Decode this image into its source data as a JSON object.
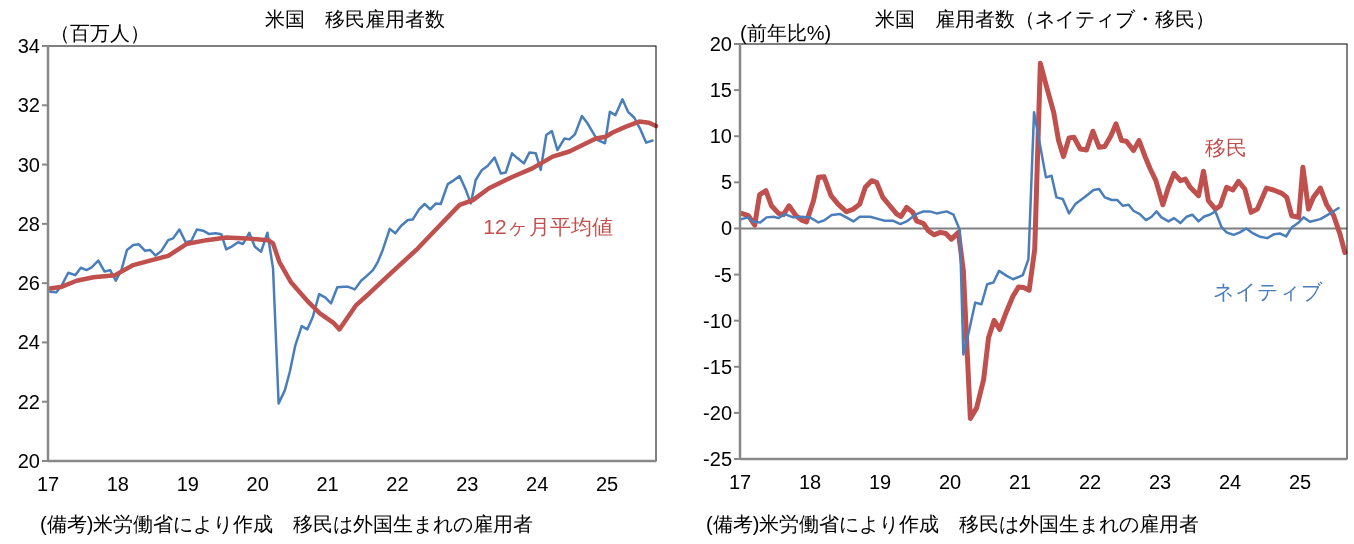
{
  "chart_data": [
    {
      "type": "line",
      "title": "米国　移民雇用者数",
      "ylabel": "（百万人）",
      "xlim": [
        2017,
        2025.7
      ],
      "xticks": [
        {
          "value": 2017,
          "label": "17"
        },
        {
          "value": 2018,
          "label": "18"
        },
        {
          "value": 2019,
          "label": "19"
        },
        {
          "value": 2020,
          "label": "20"
        },
        {
          "value": 2021,
          "label": "21"
        },
        {
          "value": 2022,
          "label": "22"
        },
        {
          "value": 2023,
          "label": "23"
        },
        {
          "value": 2024,
          "label": "24"
        },
        {
          "value": 2025,
          "label": "25"
        }
      ],
      "ylim": [
        20,
        34
      ],
      "yticks": [
        20,
        22,
        24,
        26,
        28,
        30,
        32,
        34
      ],
      "annotations": [
        "(備考)米労働省により作成　移民は外国生まれの雇用者"
      ],
      "series": [
        {
          "color": "#4a7ebb",
          "x": [
            2017.03,
            2017.12,
            2017.2,
            2017.29,
            2017.39,
            2017.47,
            2017.55,
            2017.62,
            2017.72,
            2017.81,
            2017.89,
            2017.97,
            2018.05,
            2018.13,
            2018.22,
            2018.3,
            2018.39,
            2018.46,
            2018.54,
            2018.62,
            2018.72,
            2018.79,
            2018.88,
            2018.97,
            2019.05,
            2019.13,
            2019.22,
            2019.3,
            2019.4,
            2019.48,
            2019.55,
            2019.64,
            2019.72,
            2019.79,
            2019.88,
            2019.96,
            2020.05,
            2020.14,
            2020.22,
            2020.3,
            2020.39,
            2020.46,
            2020.54,
            2020.63,
            2020.71,
            2020.79,
            2020.88,
            2020.97,
            2021.05,
            2021.14,
            2021.24,
            2021.29,
            2021.39,
            2021.48,
            2021.55,
            2021.65,
            2021.72,
            2021.79,
            2021.89,
            2021.97,
            2022.05,
            2022.15,
            2022.22,
            2022.31,
            2022.39,
            2022.47,
            2022.55,
            2022.62,
            2022.72,
            2022.8,
            2022.89,
            2022.98,
            2023.05,
            2023.12,
            2023.21,
            2023.29,
            2023.39,
            2023.48,
            2023.55,
            2023.64,
            2023.72,
            2023.81,
            2023.89,
            2023.98,
            2024.05,
            2024.13,
            2024.21,
            2024.29,
            2024.39,
            2024.46,
            2024.54,
            2024.64,
            2024.72,
            2024.79,
            2024.86,
            2024.97,
            2025.04,
            2025.12,
            2025.22,
            2025.3,
            2025.39,
            2025.48,
            2025.56,
            2025.65
          ],
          "values": [
            25.71,
            25.69,
            25.94,
            26.35,
            26.27,
            26.52,
            26.44,
            26.52,
            26.76,
            26.39,
            26.44,
            26.08,
            26.44,
            27.12,
            27.29,
            27.31,
            27.09,
            27.12,
            26.93,
            27.08,
            27.45,
            27.51,
            27.81,
            27.38,
            27.42,
            27.81,
            27.77,
            27.66,
            27.68,
            27.65,
            27.14,
            27.25,
            27.38,
            27.32,
            27.7,
            27.23,
            27.06,
            27.7,
            26.5,
            21.94,
            22.39,
            23.01,
            23.91,
            24.55,
            24.44,
            24.87,
            25.63,
            25.51,
            25.32,
            25.86,
            25.88,
            25.88,
            25.79,
            26.08,
            26.22,
            26.44,
            26.72,
            27.12,
            27.83,
            27.68,
            27.93,
            28.13,
            28.15,
            28.49,
            28.67,
            28.49,
            28.69,
            28.67,
            29.34,
            29.46,
            29.61,
            29.14,
            28.69,
            29.48,
            29.82,
            29.95,
            30.24,
            29.7,
            29.73,
            30.38,
            30.21,
            30.04,
            30.41,
            30.38,
            29.82,
            31.0,
            31.13,
            30.49,
            30.88,
            30.85,
            31.02,
            31.64,
            31.39,
            31.11,
            30.83,
            30.72,
            31.78,
            31.67,
            32.2,
            31.78,
            31.58,
            31.17,
            30.74,
            30.81
          ]
        },
        {
          "name": "12ヶ月平均値",
          "color": "#c0504d",
          "x": [
            2017.03,
            2017.2,
            2017.41,
            2017.65,
            2017.96,
            2018.22,
            2018.46,
            2018.72,
            2018.98,
            2019.27,
            2019.55,
            2019.84,
            2020.15,
            2020.22,
            2020.31,
            2020.48,
            2020.7,
            2020.89,
            2021.08,
            2021.17,
            2021.27,
            2021.41,
            2021.6,
            2021.93,
            2022.27,
            2022.55,
            2022.89,
            2023.08,
            2023.31,
            2023.65,
            2023.93,
            2024.22,
            2024.46,
            2024.84,
            2024.98,
            2025.08,
            2025.27,
            2025.46,
            2025.6,
            2025.7
          ],
          "values": [
            25.82,
            25.88,
            26.08,
            26.2,
            26.27,
            26.61,
            26.76,
            26.92,
            27.32,
            27.45,
            27.54,
            27.51,
            27.45,
            27.34,
            26.72,
            26.02,
            25.43,
            24.98,
            24.67,
            24.44,
            24.78,
            25.26,
            25.66,
            26.39,
            27.12,
            27.81,
            28.64,
            28.8,
            29.2,
            29.59,
            29.87,
            30.27,
            30.44,
            30.88,
            30.94,
            31.08,
            31.28,
            31.45,
            31.41,
            31.3
          ]
        }
      ]
    },
    {
      "type": "line",
      "title": "米国　雇用者数（ネイティブ・移民）",
      "ylabel": "(前年比%)",
      "xlim": [
        2017,
        2025.67
      ],
      "xticks": [
        {
          "value": 2017,
          "label": "17"
        },
        {
          "value": 2018,
          "label": "18"
        },
        {
          "value": 2019,
          "label": "19"
        },
        {
          "value": 2020,
          "label": "20"
        },
        {
          "value": 2021,
          "label": "21"
        },
        {
          "value": 2022,
          "label": "22"
        },
        {
          "value": 2023,
          "label": "23"
        },
        {
          "value": 2024,
          "label": "24"
        },
        {
          "value": 2025,
          "label": "25"
        }
      ],
      "ylim": [
        -25,
        20
      ],
      "yticks": [
        -25,
        -20,
        -15,
        -10,
        -5,
        0,
        5,
        10,
        15,
        20
      ],
      "ref_lines": [
        {
          "axis": "y",
          "value": 0,
          "color": "#808080"
        }
      ],
      "annotations": [
        "(備考)米労働省により作成　移民は外国生まれの雇用者"
      ],
      "series": [
        {
          "name": "移民",
          "color": "#c0504d",
          "x": [
            2017.02,
            2017.12,
            2017.21,
            2017.28,
            2017.37,
            2017.45,
            2017.55,
            2017.62,
            2017.7,
            2017.8,
            2017.88,
            2017.95,
            2018.05,
            2018.12,
            2018.2,
            2018.3,
            2018.4,
            2018.52,
            2018.62,
            2018.71,
            2018.79,
            2018.88,
            2018.95,
            2019.04,
            2019.14,
            2019.24,
            2019.3,
            2019.38,
            2019.47,
            2019.52,
            2019.62,
            2019.69,
            2019.77,
            2019.86,
            2019.94,
            2020.02,
            2020.12,
            2020.19,
            2020.29,
            2020.38,
            2020.48,
            2020.55,
            2020.63,
            2020.71,
            2020.81,
            2020.9,
            2020.98,
            2021.05,
            2021.13,
            2021.21,
            2021.29,
            2021.38,
            2021.48,
            2021.55,
            2021.62,
            2021.7,
            2021.77,
            2021.86,
            2021.95,
            2022.04,
            2022.13,
            2022.21,
            2022.3,
            2022.37,
            2022.45,
            2022.52,
            2022.62,
            2022.7,
            2022.79,
            2022.86,
            2022.94,
            2023.04,
            2023.12,
            2023.2,
            2023.29,
            2023.36,
            2023.43,
            2023.55,
            2023.62,
            2023.69,
            2023.79,
            2023.86,
            2023.95,
            2024.04,
            2024.12,
            2024.21,
            2024.3,
            2024.39,
            2024.52,
            2024.62,
            2024.74,
            2024.81,
            2024.88,
            2024.98,
            2025.04,
            2025.12,
            2025.19,
            2025.29,
            2025.38,
            2025.48,
            2025.57,
            2025.64
          ],
          "values": [
            1.63,
            1.38,
            0.36,
            3.66,
            4.09,
            2.46,
            1.63,
            1.49,
            2.46,
            1.38,
            0.91,
            0.72,
            3.01,
            5.54,
            5.62,
            3.55,
            2.64,
            1.81,
            2.1,
            2.64,
            4.46,
            5.18,
            5.0,
            3.37,
            2.46,
            1.56,
            1.3,
            2.28,
            1.74,
            0.83,
            0.54,
            -0.25,
            -0.69,
            -0.43,
            -0.54,
            -1.16,
            -0.43,
            -4.6,
            -20.6,
            -19.46,
            -16.38,
            -11.85,
            -9.96,
            -10.94,
            -8.95,
            -7.32,
            -6.34,
            -6.41,
            -6.7,
            -2.25,
            17.9,
            15.33,
            12.61,
            9.53,
            7.79,
            9.82,
            9.89,
            8.62,
            8.51,
            10.54,
            8.8,
            8.88,
            10.07,
            11.34,
            9.53,
            9.46,
            8.44,
            9.53,
            7.72,
            6.45,
            5.18,
            2.57,
            4.46,
            5.98,
            5.18,
            5.36,
            4.46,
            3.55,
            6.2,
            3.01,
            2.1,
            2.46,
            4.46,
            4.17,
            5.11,
            4.28,
            1.74,
            2.1,
            4.38,
            4.17,
            3.8,
            3.37,
            1.38,
            1.2,
            6.63,
            2.1,
            3.37,
            4.38,
            2.57,
            1.38,
            -0.62,
            -2.61
          ]
        },
        {
          "name": "ネイティブ",
          "color": "#4a7ebb",
          "x": [
            2017.02,
            2017.12,
            2017.19,
            2017.29,
            2017.38,
            2017.48,
            2017.55,
            2017.64,
            2017.76,
            2017.88,
            2018.0,
            2018.12,
            2018.21,
            2018.31,
            2018.43,
            2018.52,
            2018.62,
            2018.71,
            2018.86,
            2018.98,
            2019.07,
            2019.19,
            2019.29,
            2019.38,
            2019.52,
            2019.62,
            2019.71,
            2019.81,
            2019.95,
            2020.05,
            2020.14,
            2020.19,
            2020.26,
            2020.36,
            2020.45,
            2020.53,
            2020.62,
            2020.7,
            2020.81,
            2020.9,
            2021.04,
            2021.12,
            2021.2,
            2021.37,
            2021.45,
            2021.52,
            2021.61,
            2021.7,
            2021.79,
            2021.93,
            2022.05,
            2022.13,
            2022.21,
            2022.31,
            2022.39,
            2022.47,
            2022.55,
            2022.62,
            2022.71,
            2022.8,
            2022.88,
            2022.95,
            2023.02,
            2023.12,
            2023.2,
            2023.29,
            2023.38,
            2023.46,
            2023.55,
            2023.63,
            2023.71,
            2023.79,
            2023.88,
            2023.95,
            2024.05,
            2024.14,
            2024.23,
            2024.33,
            2024.43,
            2024.53,
            2024.63,
            2024.71,
            2024.8,
            2024.88,
            2024.98,
            2025.05,
            2025.14,
            2025.29,
            2025.4,
            2025.55
          ],
          "values": [
            1.01,
            1.2,
            0.72,
            0.65,
            1.2,
            1.27,
            1.12,
            1.56,
            1.2,
            1.27,
            1.2,
            0.65,
            0.91,
            1.45,
            1.56,
            1.2,
            0.76,
            1.27,
            1.27,
            1.01,
            0.83,
            0.83,
            0.47,
            0.76,
            1.56,
            1.85,
            1.85,
            1.63,
            1.85,
            1.49,
            -0.18,
            -13.66,
            -11.49,
            -8.04,
            -8.22,
            -6.05,
            -5.87,
            -4.6,
            -5.14,
            -5.51,
            -5.07,
            -3.33,
            12.61,
            5.54,
            5.72,
            3.37,
            3.19,
            1.63,
            2.64,
            3.44,
            4.17,
            4.28,
            3.37,
            3.08,
            3.08,
            2.46,
            2.57,
            1.92,
            1.56,
            0.91,
            1.27,
            1.85,
            1.2,
            0.76,
            1.12,
            0.58,
            1.27,
            1.49,
            0.76,
            1.3,
            1.49,
            1.85,
            0.11,
            -0.43,
            -0.69,
            -0.43,
            0,
            -0.54,
            -0.91,
            -1.05,
            -0.62,
            -0.54,
            -0.87,
            0.11,
            0.65,
            1.2,
            0.72,
            1.01,
            1.49,
            2.21
          ]
        }
      ]
    }
  ]
}
